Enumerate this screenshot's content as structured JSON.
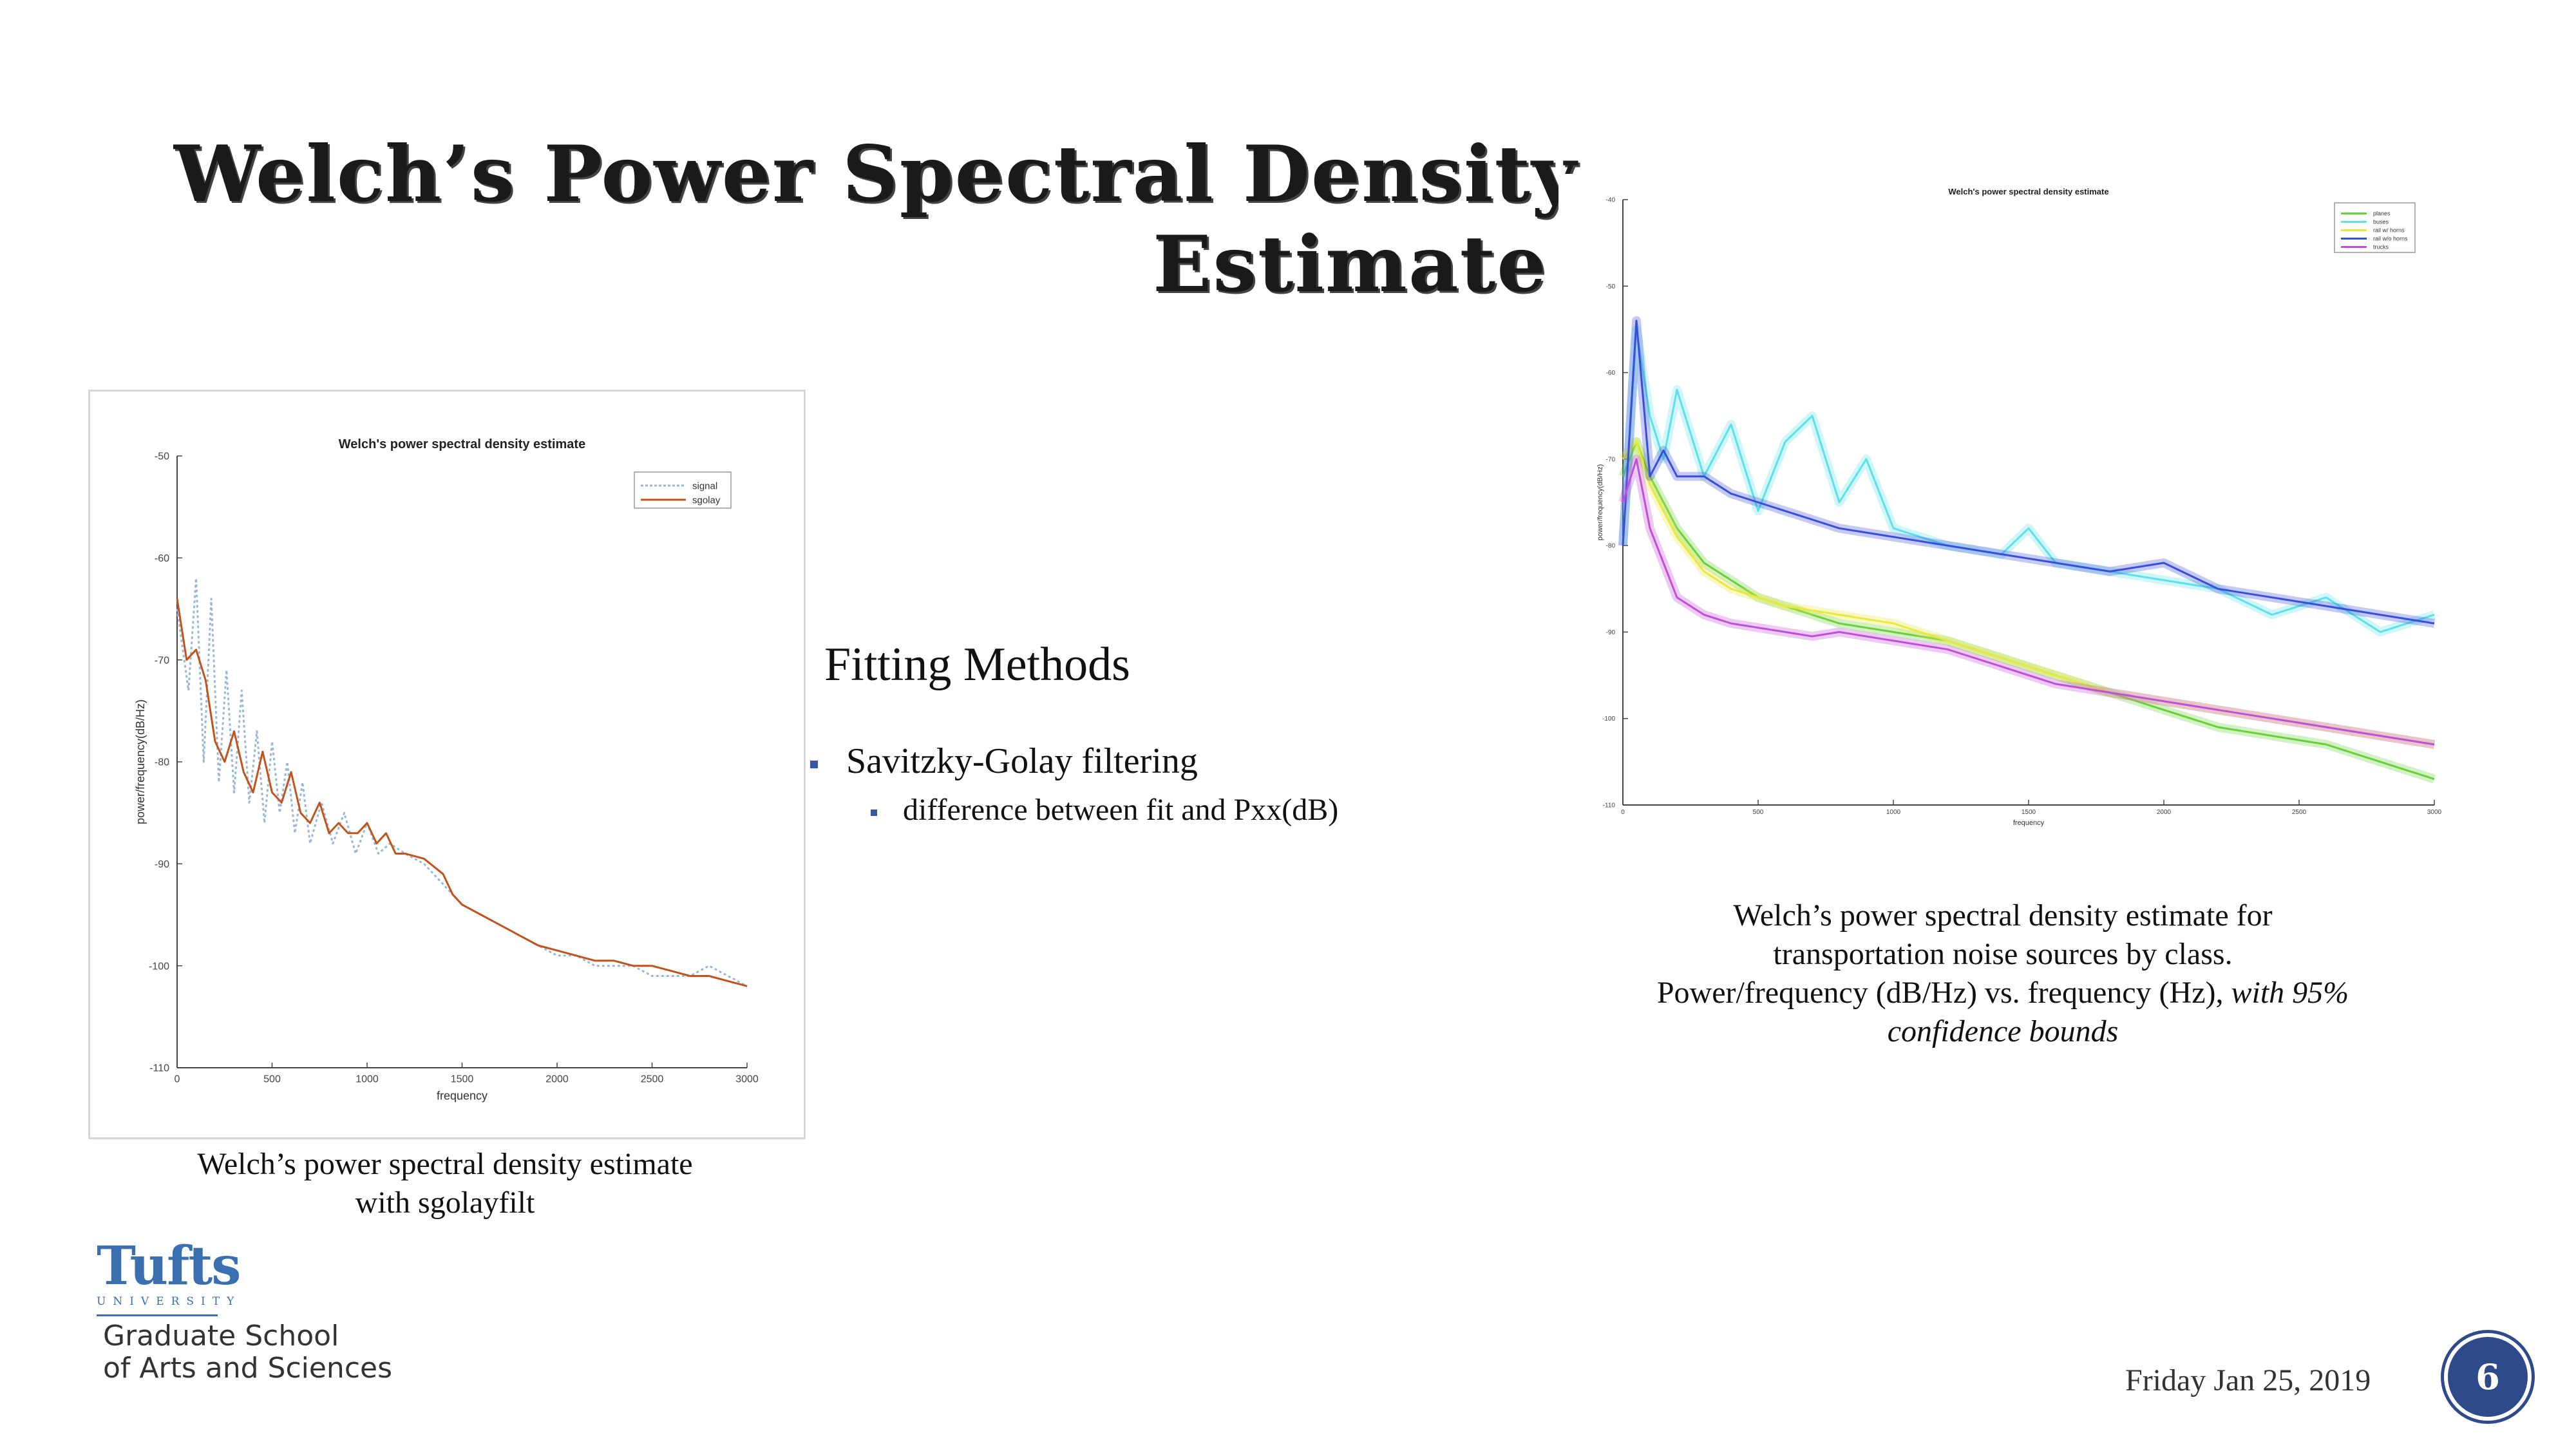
{
  "slide": {
    "title_line1": "Welch’s Power Spectral Density",
    "title_line2": "Estimate",
    "section_title": "Fitting Methods",
    "bullet1": "Savitzky-Golay filtering",
    "bullet2": "difference between fit and Pxx(dB)",
    "caption_left_line1": "Welch’s power spectral density estimate",
    "caption_left_line2": "with sgolayfilt",
    "caption_right_line1": "Welch’s power spectral density estimate for",
    "caption_right_line2": "transportation noise sources by class.",
    "caption_right_line3a": "Power/frequency (dB/Hz) vs. frequency (Hz), ",
    "caption_right_line3b": "with 95%",
    "caption_right_line4": "confidence bounds",
    "logo_name": "Tufts",
    "logo_sub": "UNIVERSITY",
    "school_line1": "Graduate School",
    "school_line2": "of Arts and Sciences",
    "date": "Friday Jan 25, 2019",
    "page_number": "6"
  },
  "chart_data": [
    {
      "type": "line",
      "title": "Welch's power spectral density estimate",
      "xlabel": "frequency",
      "ylabel": "power/frequency(dB/Hz)",
      "xlim": [
        0,
        3000
      ],
      "ylim": [
        -110,
        -50
      ],
      "xticks": [
        "0",
        "500",
        "1000",
        "1500",
        "2000",
        "2500",
        "3000"
      ],
      "yticks": [
        "-110",
        "-100",
        "-90",
        "-80",
        "-70",
        "-60",
        "-50"
      ],
      "grid": false,
      "legend_position": "top-right",
      "series": [
        {
          "name": "signal",
          "color": "#9ab7d8",
          "dashed": true,
          "x": [
            0,
            60,
            100,
            140,
            180,
            220,
            260,
            300,
            340,
            380,
            420,
            460,
            500,
            540,
            580,
            620,
            660,
            700,
            760,
            820,
            880,
            940,
            1000,
            1060,
            1120,
            1200,
            1300,
            1400,
            1500,
            1600,
            1700,
            1800,
            1900,
            2000,
            2100,
            2200,
            2300,
            2400,
            2500,
            2600,
            2700,
            2800,
            2900,
            3000
          ],
          "y": [
            -65,
            -73,
            -62,
            -80,
            -64,
            -82,
            -71,
            -83,
            -73,
            -84,
            -77,
            -86,
            -78,
            -85,
            -80,
            -87,
            -82,
            -88,
            -84,
            -88,
            -85,
            -89,
            -86,
            -89,
            -88,
            -89,
            -90,
            -92,
            -94,
            -95,
            -96,
            -97,
            -98,
            -99,
            -99,
            -100,
            -100,
            -100,
            -101,
            -101,
            -101,
            -100,
            -101,
            -102
          ]
        },
        {
          "name": "sgolay",
          "color": "#c0541c",
          "dashed": false,
          "x": [
            0,
            50,
            100,
            150,
            200,
            250,
            300,
            350,
            400,
            450,
            500,
            550,
            600,
            650,
            700,
            750,
            800,
            850,
            900,
            950,
            1000,
            1050,
            1100,
            1150,
            1200,
            1300,
            1400,
            1450,
            1500,
            1600,
            1700,
            1800,
            1900,
            2000,
            2100,
            2200,
            2300,
            2400,
            2500,
            2600,
            2700,
            2800,
            2900,
            3000
          ],
          "y": [
            -64,
            -70,
            -69,
            -72,
            -78,
            -80,
            -77,
            -81,
            -83,
            -79,
            -83,
            -84,
            -81,
            -85,
            -86,
            -84,
            -87,
            -86,
            -87,
            -87,
            -86,
            -88,
            -87,
            -89,
            -89,
            -89.5,
            -91,
            -93,
            -94,
            -95,
            -96,
            -97,
            -98,
            -98.5,
            -99,
            -99.5,
            -99.5,
            -100,
            -100,
            -100.5,
            -101,
            -101,
            -101.5,
            -102
          ]
        }
      ]
    },
    {
      "type": "line",
      "title": "Welch's power spectral density estimate",
      "xlabel": "frequency",
      "ylabel": "power/frequency(dB/Hz)",
      "xlim": [
        0,
        3000
      ],
      "ylim": [
        -110,
        -40
      ],
      "xticks": [
        "0",
        "500",
        "1000",
        "1500",
        "2000",
        "2500",
        "3000"
      ],
      "yticks": [
        "-110",
        "-100",
        "-90",
        "-80",
        "-70",
        "-60",
        "-50",
        "-40"
      ],
      "grid": false,
      "legend_position": "top-right",
      "series": [
        {
          "name": "planes",
          "color": "#6ad03a",
          "x": [
            0,
            50,
            100,
            200,
            300,
            400,
            500,
            600,
            700,
            800,
            1000,
            1200,
            1400,
            1600,
            1800,
            2000,
            2200,
            2400,
            2600,
            2800,
            3000
          ],
          "y": [
            -72,
            -68,
            -72,
            -78,
            -82,
            -84,
            -86,
            -87,
            -88,
            -89,
            -90,
            -91,
            -93,
            -95,
            -97,
            -99,
            -101,
            -102,
            -103,
            -105,
            -107
          ]
        },
        {
          "name": "buses",
          "color": "#5fe0e8",
          "x": [
            0,
            50,
            100,
            150,
            200,
            300,
            400,
            500,
            600,
            700,
            800,
            900,
            1000,
            1200,
            1400,
            1500,
            1600,
            1800,
            2000,
            2200,
            2400,
            2600,
            2800,
            3000
          ],
          "y": [
            -80,
            -55,
            -65,
            -70,
            -62,
            -72,
            -66,
            -76,
            -68,
            -65,
            -75,
            -70,
            -78,
            -80,
            -81,
            -78,
            -82,
            -83,
            -84,
            -85,
            -88,
            -86,
            -90,
            -88
          ]
        },
        {
          "name": "rail w/ horns",
          "color": "#e8e840",
          "x": [
            0,
            50,
            100,
            200,
            300,
            400,
            500,
            600,
            800,
            1000,
            1200,
            1400,
            1600,
            1800,
            2000,
            2200,
            2400,
            2600,
            2800,
            3000
          ],
          "y": [
            -70,
            -68,
            -73,
            -79,
            -83,
            -85,
            -86,
            -87,
            -88,
            -89,
            -91,
            -93,
            -95,
            -97,
            -98,
            -99,
            -100,
            -101,
            -102,
            -103
          ]
        },
        {
          "name": "rail w/o horns",
          "color": "#3a4fd8",
          "x": [
            0,
            50,
            100,
            150,
            200,
            300,
            400,
            500,
            600,
            800,
            1000,
            1200,
            1400,
            1500,
            1600,
            1800,
            2000,
            2200,
            2400,
            2600,
            2800,
            3000
          ],
          "y": [
            -80,
            -54,
            -72,
            -69,
            -72,
            -72,
            -74,
            -75,
            -76,
            -78,
            -79,
            -80,
            -81,
            -81.5,
            -82,
            -83,
            -82,
            -85,
            -86,
            -87,
            -88,
            -89
          ]
        },
        {
          "name": "trucks",
          "color": "#c050d8",
          "x": [
            0,
            50,
            100,
            200,
            300,
            400,
            500,
            600,
            700,
            800,
            1000,
            1200,
            1400,
            1600,
            1800,
            2000,
            2200,
            2400,
            2600,
            2800,
            3000
          ],
          "y": [
            -75,
            -70,
            -78,
            -86,
            -88,
            -89,
            -89.5,
            -90,
            -90.5,
            -90,
            -91,
            -92,
            -94,
            -96,
            -97,
            -98,
            -99,
            -100,
            -101,
            -102,
            -103
          ]
        }
      ]
    }
  ]
}
